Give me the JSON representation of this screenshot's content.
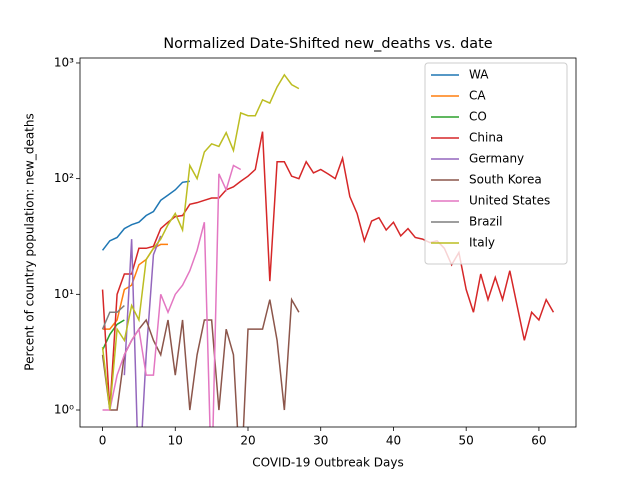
{
  "chart_data": {
    "type": "line",
    "title": "Normalized Date-Shifted new_deaths vs. date",
    "xlabel": "COVID-19 Outbreak Days",
    "ylabel": "Percent of country population: new_deaths",
    "xlim": [
      -3.1,
      65.1
    ],
    "ylim": [
      0.713,
      1104
    ],
    "log_y": true,
    "xticks": [
      0,
      10,
      20,
      30,
      40,
      50,
      60
    ],
    "yticks": [
      {
        "value": 1,
        "label": "10⁰"
      },
      {
        "value": 10,
        "label": "10¹"
      },
      {
        "value": 100,
        "label": "10²"
      },
      {
        "value": 1000,
        "label": "10³"
      }
    ],
    "legend": "upper right",
    "series": [
      {
        "name": "WA",
        "color": "#1f77b4",
        "x": [
          0,
          1,
          2,
          3,
          4,
          5,
          6,
          7,
          8,
          9,
          10,
          11,
          12
        ],
        "values": [
          24,
          29,
          31,
          37,
          40,
          42,
          48,
          52,
          65,
          72,
          80,
          93,
          95
        ]
      },
      {
        "name": "CA",
        "color": "#ff7f0e",
        "x": [
          0,
          1,
          2,
          3,
          4,
          5,
          6,
          7,
          8,
          9
        ],
        "values": [
          5,
          5,
          6,
          11,
          12,
          18,
          20,
          25,
          27,
          27
        ]
      },
      {
        "name": "CO",
        "color": "#2ca02c",
        "x": [
          0,
          1,
          2,
          3
        ],
        "values": [
          3.3,
          4.5,
          5.5,
          6
        ]
      },
      {
        "name": "China",
        "color": "#d62728",
        "x": [
          0,
          1,
          2,
          3,
          4,
          5,
          6,
          7,
          8,
          9,
          10,
          11,
          12,
          13,
          14,
          15,
          16,
          17,
          18,
          19,
          20,
          21,
          22,
          23,
          24,
          25,
          26,
          27,
          28,
          29,
          30,
          31,
          32,
          33,
          34,
          35,
          36,
          37,
          38,
          39,
          40,
          41,
          42,
          43,
          44,
          45,
          46,
          47,
          48,
          49,
          50,
          51,
          52,
          53,
          54,
          55,
          56,
          57,
          58,
          59,
          60,
          61,
          62
        ],
        "values": [
          11,
          1,
          10,
          15,
          15,
          25,
          25,
          26,
          37,
          42,
          47,
          48,
          60,
          62,
          65,
          68,
          68,
          80,
          85,
          95,
          105,
          120,
          255,
          13,
          140,
          140,
          105,
          100,
          140,
          112,
          120,
          110,
          100,
          150,
          70,
          50,
          29,
          43,
          46,
          36,
          42,
          32,
          37,
          31,
          30,
          28,
          29,
          25,
          18,
          23,
          11,
          7,
          15,
          9,
          14,
          9,
          16,
          8,
          4,
          7,
          6,
          9,
          7
        ]
      },
      {
        "name": "Germany",
        "color": "#9467bd",
        "x": [
          3,
          4,
          5,
          6,
          7,
          8
        ],
        "values": [
          2,
          30,
          0,
          3,
          22,
          32
        ]
      },
      {
        "name": "South Korea",
        "color": "#8c564b",
        "x": [
          0,
          1,
          2,
          3,
          4,
          5,
          6,
          7,
          8,
          9,
          10,
          11,
          12,
          13,
          14,
          15,
          16,
          17,
          18,
          19,
          20,
          21,
          22,
          23,
          24,
          25,
          26,
          27
        ],
        "values": [
          3,
          1,
          1,
          3,
          4,
          5,
          6,
          4,
          3,
          6,
          2,
          6,
          1,
          3,
          6,
          6,
          1,
          5,
          3,
          0,
          5,
          5,
          5,
          9,
          4,
          1,
          9,
          7
        ]
      },
      {
        "name": "United States",
        "color": "#e377c2",
        "x": [
          0,
          1,
          2,
          3,
          4,
          5,
          6,
          7,
          8,
          9,
          10,
          11,
          12,
          13,
          14,
          15,
          16,
          17,
          18,
          19
        ],
        "values": [
          1,
          1,
          2,
          3,
          4,
          5,
          2,
          2,
          10,
          7,
          10,
          12,
          16,
          24,
          42,
          0,
          110,
          80,
          130,
          120
        ]
      },
      {
        "name": "Brazil",
        "color": "#7f7f7f",
        "x": [
          0,
          1,
          2,
          3
        ],
        "values": [
          5,
          7,
          7,
          8
        ]
      },
      {
        "name": "Italy",
        "color": "#bcbd22",
        "x": [
          0,
          1,
          2,
          3,
          4,
          5,
          6,
          7,
          8,
          9,
          10,
          11,
          12,
          13,
          14,
          15,
          16,
          17,
          18,
          19,
          20,
          21,
          22,
          23,
          24,
          25,
          26,
          27
        ],
        "values": [
          3.5,
          1,
          5,
          4,
          8,
          6,
          20,
          25,
          30,
          40,
          50,
          36,
          130,
          100,
          170,
          200,
          190,
          250,
          175,
          370,
          350,
          350,
          480,
          450,
          620,
          790,
          650,
          600
        ]
      }
    ]
  }
}
